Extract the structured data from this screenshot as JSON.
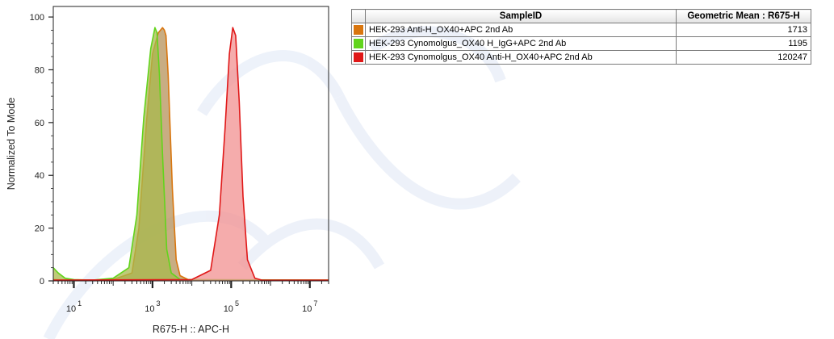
{
  "chart_data": {
    "type": "area",
    "xlabel": "R675-H :: APC-H",
    "ylabel": "Normalized To Mode",
    "x_scale": "log",
    "xlim": [
      3,
      30000000
    ],
    "ylim": [
      0,
      104
    ],
    "x_ticks": [
      {
        "value": 10,
        "base": "10",
        "exp": "1"
      },
      {
        "value": 1000,
        "base": "10",
        "exp": "3"
      },
      {
        "value": 100000,
        "base": "10",
        "exp": "5"
      },
      {
        "value": 10000000,
        "base": "10",
        "exp": "7"
      }
    ],
    "y_ticks": [
      0,
      20,
      40,
      60,
      80,
      100
    ],
    "grid": false,
    "series": [
      {
        "name": "HEK-293 Anti-H_OX40+APC 2nd Ab",
        "color": "#d9760f",
        "fill": "#b5915a",
        "x": [
          3,
          6,
          30,
          100,
          300,
          450,
          700,
          1000,
          1400,
          1800,
          2000,
          2200,
          2500,
          3200,
          4000,
          5000,
          8000,
          30000,
          30000000
        ],
        "y": [
          0.5,
          0.3,
          0.3,
          0.5,
          3,
          20,
          60,
          86,
          94,
          96,
          95,
          93,
          78,
          35,
          8,
          2,
          0.5,
          0.3,
          0.3
        ]
      },
      {
        "name": "HEK-293 Cynomolgus_OX40 H_IgG+APC 2nd Ab",
        "color": "#62d41c",
        "fill": "#a8b94c",
        "x": [
          3,
          4,
          6,
          10,
          30,
          100,
          250,
          400,
          600,
          900,
          1150,
          1300,
          1500,
          1800,
          2300,
          3000,
          5000,
          30000000
        ],
        "y": [
          5,
          3,
          1,
          0.5,
          0.3,
          1,
          5,
          25,
          62,
          88,
          96,
          94,
          78,
          48,
          12,
          3,
          0.5,
          0.3
        ]
      },
      {
        "name": "HEK-293 Cynomolgus_OX40 Anti-H_OX40+APC 2nd Ab",
        "color": "#e01818",
        "fill": "#f29090",
        "x": [
          3,
          10000,
          30000,
          50000,
          70000,
          90000,
          110000,
          130000,
          160000,
          200000,
          260000,
          400000,
          600000,
          30000000
        ],
        "y": [
          0.3,
          0.5,
          4,
          25,
          58,
          86,
          96,
          93,
          68,
          32,
          8,
          1,
          0.3,
          0.3
        ]
      }
    ],
    "table": {
      "headers": [
        "",
        "SampleID",
        "Geometric Mean : R675-H"
      ],
      "rows": [
        {
          "sample": "HEK-293 Anti-H_OX40+APC 2nd Ab",
          "value": "1713",
          "color": "#d9760f"
        },
        {
          "sample": "HEK-293 Cynomolgus_OX40 H_IgG+APC 2nd Ab",
          "value": "1195",
          "color": "#62d41c"
        },
        {
          "sample": "HEK-293 Cynomolgus_OX40 Anti-H_OX40+APC 2nd Ab",
          "value": "120247",
          "color": "#e01818"
        }
      ]
    }
  }
}
